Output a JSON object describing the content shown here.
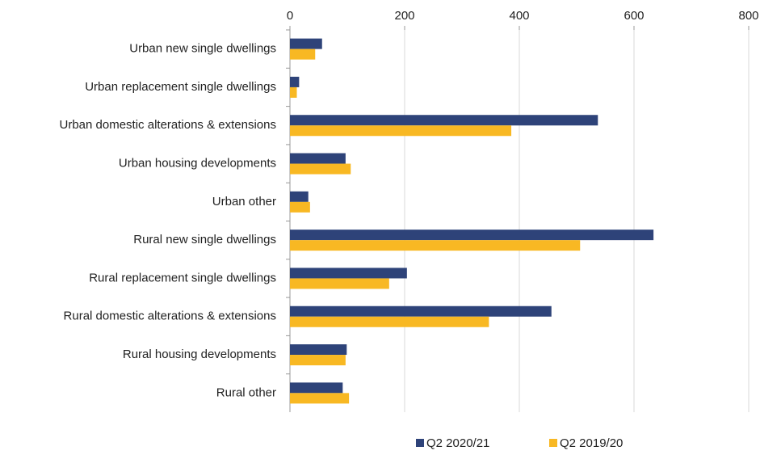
{
  "chart_data": {
    "type": "hbar",
    "categories": [
      "Urban new single dwellings",
      "Urban replacement single dwellings",
      "Urban domestic alterations & extensions",
      "Urban housing developments",
      "Urban other",
      "Rural new single dwellings",
      "Rural replacement single dwellings",
      "Rural domestic alterations & extensions",
      "Rural housing developments",
      "Rural other"
    ],
    "series": [
      {
        "name": "Q2 2020/21",
        "color": "#2e4379",
        "values": [
          56,
          16,
          537,
          97,
          32,
          634,
          204,
          456,
          99,
          92
        ]
      },
      {
        "name": "Q2 2019/20",
        "color": "#f8b823",
        "values": [
          44,
          12,
          386,
          106,
          35,
          506,
          173,
          347,
          97,
          103
        ]
      }
    ],
    "xlim": [
      0,
      800
    ],
    "xticks": [
      0,
      200,
      400,
      600,
      800
    ],
    "grid": true,
    "legend": "bottom"
  }
}
